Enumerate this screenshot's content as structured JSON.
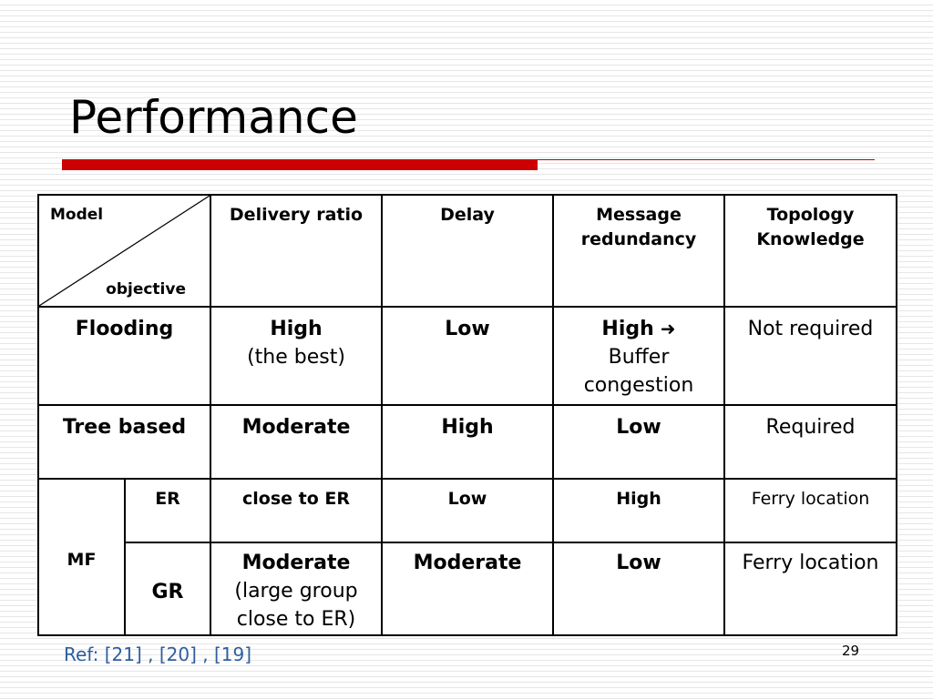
{
  "slide": {
    "title": "Performance",
    "reference": "Ref: [21] , [20] , [19]",
    "page_number": "29",
    "accent_color": "#cc0000"
  },
  "table": {
    "corner_top": "Model",
    "corner_bottom": "objective",
    "headers": {
      "delivery_ratio": "Delivery ratio",
      "delay": "Delay",
      "message_redundancy": "Message redundancy",
      "topology_knowledge": "Topology Knowledge"
    },
    "rows": {
      "flooding": {
        "model": "Flooding",
        "delivery_ratio": "High",
        "delivery_ratio_note": "(the best)",
        "delay": "Low",
        "message_redundancy": "High",
        "message_redundancy_note": "Buffer congestion",
        "topology_knowledge": "Not required"
      },
      "tree_based": {
        "model": "Tree based",
        "delivery_ratio": "Moderate",
        "delay": "High",
        "message_redundancy": "Low",
        "topology_knowledge": "Required"
      },
      "mf": {
        "model": "MF",
        "er": {
          "variant": "ER",
          "delivery_ratio": "close to ER",
          "delay": "Low",
          "message_redundancy": "High",
          "topology_knowledge": "Ferry location"
        },
        "gr": {
          "variant": "GR",
          "delivery_ratio": "Moderate",
          "delivery_ratio_note": "(large group close to ER)",
          "delay": "Moderate",
          "message_redundancy": "Low",
          "topology_knowledge": "Ferry location"
        }
      }
    }
  }
}
